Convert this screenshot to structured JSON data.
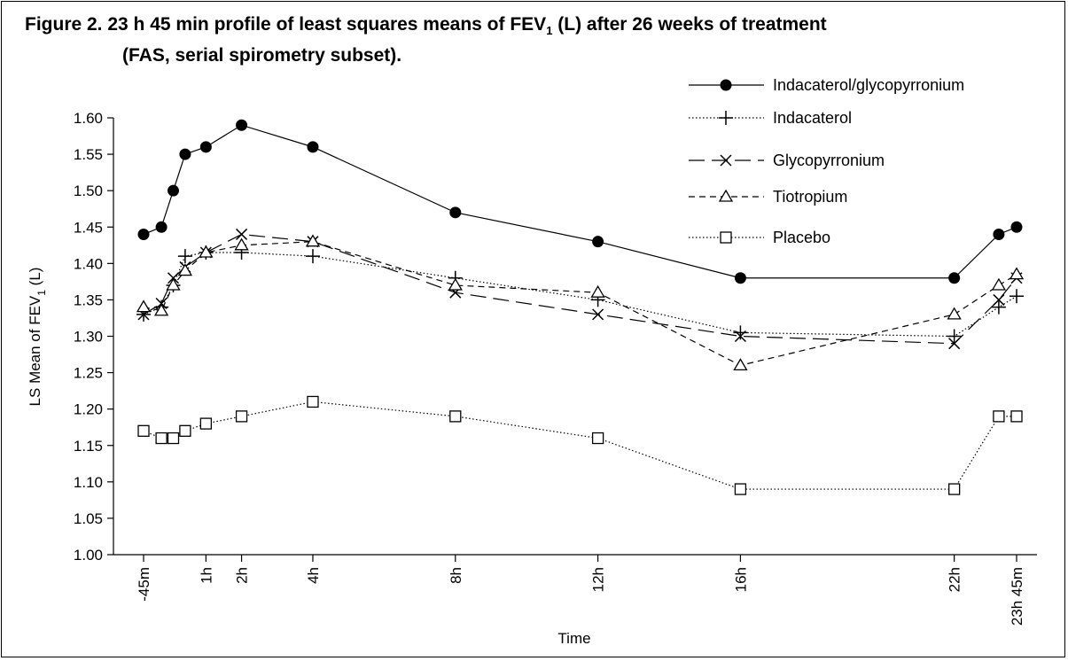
{
  "title": {
    "line1_prefix": "Figure 2. 23 h 45 min profile of least squares means of FEV",
    "line1_sub": "1",
    "line1_suffix": " (L) after 26 weeks of treatment",
    "line2": "(FAS, serial spirometry subset)."
  },
  "chart_data": {
    "type": "line",
    "title": "Figure 2. 23 h 45 min profile of least squares means of FEV1 (L) after 26 weeks of treatment (FAS, serial spirometry subset).",
    "xlabel": "Time",
    "ylabel_prefix": "LS Mean of FEV",
    "ylabel_sub": "1",
    "ylabel_suffix": " (L)",
    "ylim": [
      1.0,
      1.6
    ],
    "xlim_minutes": [
      -60,
      1440
    ],
    "yticks": [
      "1.00",
      "1.05",
      "1.10",
      "1.15",
      "1.20",
      "1.25",
      "1.30",
      "1.35",
      "1.40",
      "1.45",
      "1.50",
      "1.55",
      "1.60"
    ],
    "xticks": [
      {
        "t": -45,
        "label": "-45m"
      },
      {
        "t": 60,
        "label": "1h"
      },
      {
        "t": 120,
        "label": "2h"
      },
      {
        "t": 240,
        "label": "4h"
      },
      {
        "t": 480,
        "label": "8h"
      },
      {
        "t": 720,
        "label": "12h"
      },
      {
        "t": 960,
        "label": "16h"
      },
      {
        "t": 1320,
        "label": "22h"
      },
      {
        "t": 1425,
        "label": "23h 45m"
      }
    ],
    "x": [
      -45,
      -15,
      5,
      25,
      60,
      120,
      240,
      480,
      720,
      960,
      1320,
      1395,
      1425
    ],
    "series": [
      {
        "name": "Indacaterol/glycopyrronium",
        "marker": "filled-circle",
        "dash": "",
        "values": [
          1.44,
          1.45,
          1.5,
          1.55,
          1.56,
          1.59,
          1.56,
          1.47,
          1.43,
          1.38,
          1.38,
          1.44,
          1.45
        ]
      },
      {
        "name": "Indacaterol",
        "marker": "plus",
        "dash": "1.5 2.5",
        "values": [
          1.33,
          1.34,
          1.37,
          1.41,
          1.415,
          1.415,
          1.41,
          1.38,
          1.35,
          1.305,
          1.3,
          1.34,
          1.355
        ]
      },
      {
        "name": "Glycopyrronium",
        "marker": "cross",
        "dash": "18 8",
        "values": [
          1.33,
          1.345,
          1.38,
          1.395,
          1.415,
          1.44,
          1.43,
          1.36,
          1.33,
          1.3,
          1.29,
          1.35,
          1.38
        ]
      },
      {
        "name": "Tiotropium",
        "marker": "open-triangle",
        "dash": "7 5",
        "values": [
          1.34,
          1.335,
          1.37,
          1.39,
          1.415,
          1.425,
          1.43,
          1.37,
          1.36,
          1.26,
          1.33,
          1.37,
          1.385
        ]
      },
      {
        "name": "Placebo",
        "marker": "open-square",
        "dash": "1.5 2.5",
        "values": [
          1.17,
          1.16,
          1.16,
          1.17,
          1.18,
          1.19,
          1.21,
          1.19,
          1.16,
          1.09,
          1.09,
          1.19,
          1.19
        ]
      }
    ],
    "legend_position": "top-right",
    "grid": false
  }
}
